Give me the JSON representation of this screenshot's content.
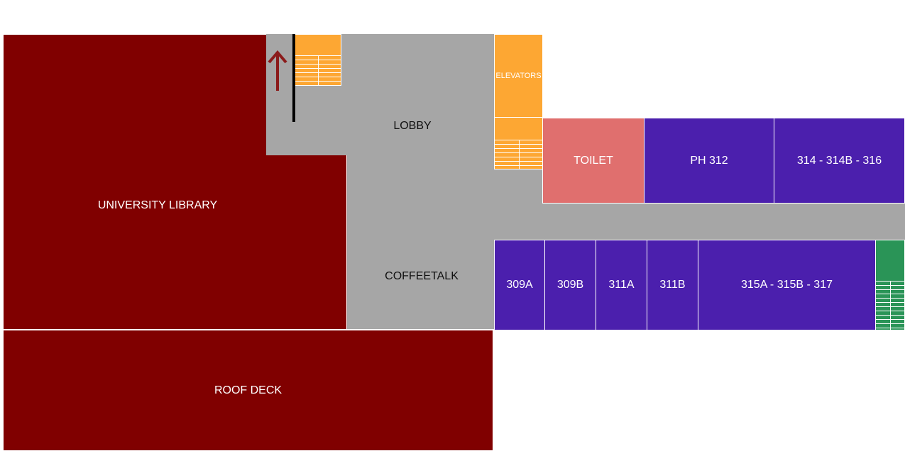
{
  "rooms": {
    "university_library": "UNIVERSITY LIBRARY",
    "roof_deck": "ROOF DECK",
    "lobby": "LOBBY",
    "coffeetalk": "COFFEETALK",
    "elevators": "ELEVATORS",
    "toilet": "TOILET",
    "ph312": "PH 312",
    "r314": "314 - 314B - 316",
    "r309a": "309A",
    "r309b": "309B",
    "r311a": "311A",
    "r311b": "311B",
    "r315": "315A - 315B - 317"
  },
  "colors": {
    "library": "#800000",
    "hallway": "#a6a6a6",
    "classroom": "#4b1fad",
    "toilet": "#e06f6e",
    "elevator_stairs": "#fda733",
    "green_stairs": "#2a9457",
    "arrow": "#8b1a1a"
  },
  "icons": {
    "direction_arrow": "up-arrow-icon"
  }
}
